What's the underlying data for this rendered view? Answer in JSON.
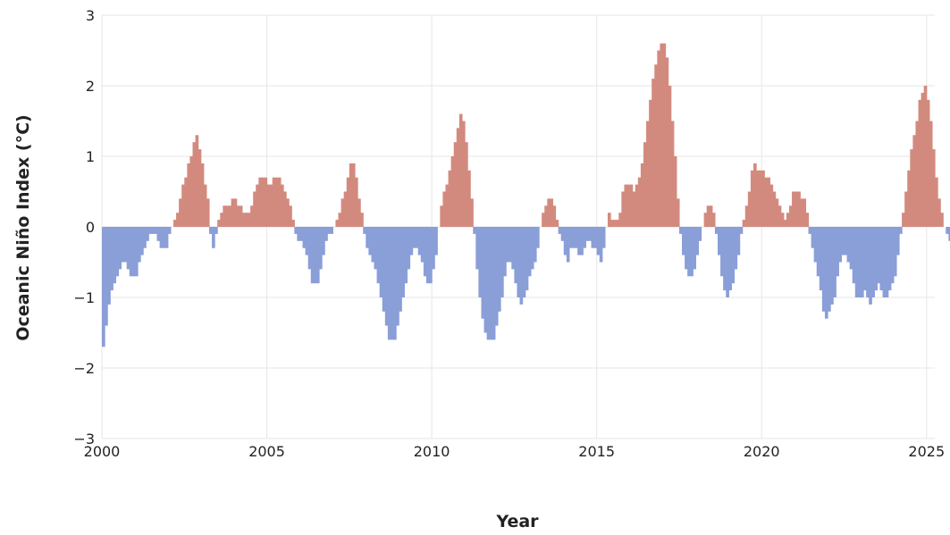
{
  "chart_data": {
    "type": "bar",
    "title": "",
    "xlabel": "Year",
    "ylabel": "Oceanic Niño Index (°C)",
    "xlim": [
      2000,
      2025.25
    ],
    "ylim": [
      -3,
      3
    ],
    "x_ticks": [
      {
        "value": 2000,
        "label": "2000"
      },
      {
        "value": 2005,
        "label": "2005"
      },
      {
        "value": 2010,
        "label": "2010"
      },
      {
        "value": 2015,
        "label": "2015"
      },
      {
        "value": 2020,
        "label": "2020"
      },
      {
        "value": 2025,
        "label": "2025"
      }
    ],
    "y_ticks": [
      {
        "value": 3,
        "label": "3"
      },
      {
        "value": 2,
        "label": "2"
      },
      {
        "value": 1,
        "label": "1"
      },
      {
        "value": 0,
        "label": "0"
      },
      {
        "value": -1,
        "label": "−1"
      },
      {
        "value": -2,
        "label": "−2"
      },
      {
        "value": -3,
        "label": "−3"
      }
    ],
    "grid": true,
    "colors": {
      "positive": "#d38a7e",
      "negative": "#8a9ed8",
      "grid": "#e6e6e6"
    },
    "series": [
      {
        "x_start": 2000,
        "step_months": 1,
        "values": [
          -1.7,
          -1.4,
          -1.1,
          -0.9,
          -0.8,
          -0.7,
          -0.6,
          -0.5,
          -0.5,
          -0.6,
          -0.7,
          -0.7,
          -0.7,
          -0.5,
          -0.4,
          -0.3,
          -0.2,
          -0.1,
          -0.1,
          -0.1,
          -0.2,
          -0.3,
          -0.3,
          -0.3,
          -0.1,
          0.0,
          0.1,
          0.2,
          0.4,
          0.6,
          0.7,
          0.9,
          1.0,
          1.2,
          1.3,
          1.1,
          0.9,
          0.6,
          0.4,
          -0.1,
          -0.3,
          -0.1,
          0.1,
          0.2,
          0.3,
          0.3,
          0.3,
          0.4,
          0.4,
          0.3,
          0.3,
          0.2,
          0.2,
          0.2,
          0.3,
          0.5,
          0.6,
          0.7,
          0.7,
          0.7,
          0.6,
          0.6,
          0.7,
          0.7,
          0.7,
          0.6,
          0.5,
          0.4,
          0.3,
          0.1,
          -0.1,
          -0.2,
          -0.2,
          -0.3,
          -0.4,
          -0.6,
          -0.8,
          -0.8,
          -0.8,
          -0.6,
          -0.4,
          -0.2,
          -0.1,
          -0.1,
          0.0,
          0.1,
          0.2,
          0.4,
          0.5,
          0.7,
          0.9,
          0.9,
          0.7,
          0.4,
          0.2,
          -0.1,
          -0.3,
          -0.4,
          -0.5,
          -0.6,
          -0.8,
          -1.0,
          -1.2,
          -1.4,
          -1.6,
          -1.6,
          -1.6,
          -1.4,
          -1.2,
          -1.0,
          -0.8,
          -0.6,
          -0.4,
          -0.3,
          -0.3,
          -0.4,
          -0.5,
          -0.7,
          -0.8,
          -0.8,
          -0.6,
          -0.4,
          0.0,
          0.3,
          0.5,
          0.6,
          0.8,
          1.0,
          1.2,
          1.4,
          1.6,
          1.5,
          1.2,
          0.8,
          0.4,
          -0.1,
          -0.6,
          -1.0,
          -1.3,
          -1.5,
          -1.6,
          -1.6,
          -1.6,
          -1.4,
          -1.2,
          -1.0,
          -0.7,
          -0.5,
          -0.5,
          -0.6,
          -0.8,
          -1.0,
          -1.1,
          -1.0,
          -0.9,
          -0.7,
          -0.6,
          -0.5,
          -0.3,
          0.0,
          0.2,
          0.3,
          0.4,
          0.4,
          0.3,
          0.1,
          -0.1,
          -0.2,
          -0.4,
          -0.5,
          -0.3,
          -0.3,
          -0.3,
          -0.4,
          -0.4,
          -0.3,
          -0.2,
          -0.2,
          -0.3,
          -0.3,
          -0.4,
          -0.5,
          -0.3,
          0.0,
          0.2,
          0.1,
          0.1,
          0.1,
          0.2,
          0.5,
          0.6,
          0.6,
          0.6,
          0.5,
          0.6,
          0.7,
          0.9,
          1.2,
          1.5,
          1.8,
          2.1,
          2.3,
          2.5,
          2.6,
          2.6,
          2.4,
          2.0,
          1.5,
          1.0,
          0.4,
          -0.1,
          -0.4,
          -0.6,
          -0.7,
          -0.7,
          -0.6,
          -0.4,
          -0.2,
          0.0,
          0.2,
          0.3,
          0.3,
          0.2,
          -0.1,
          -0.4,
          -0.7,
          -0.9,
          -1.0,
          -0.9,
          -0.8,
          -0.6,
          -0.4,
          -0.1,
          0.1,
          0.3,
          0.5,
          0.8,
          0.9,
          0.8,
          0.8,
          0.8,
          0.7,
          0.7,
          0.6,
          0.5,
          0.4,
          0.3,
          0.2,
          0.1,
          0.2,
          0.3,
          0.5,
          0.5,
          0.5,
          0.4,
          0.4,
          0.2,
          -0.1,
          -0.3,
          -0.5,
          -0.7,
          -0.9,
          -1.2,
          -1.3,
          -1.2,
          -1.1,
          -1.0,
          -0.7,
          -0.5,
          -0.4,
          -0.4,
          -0.5,
          -0.6,
          -0.8,
          -1.0,
          -1.0,
          -1.0,
          -0.9,
          -1.0,
          -1.1,
          -1.0,
          -0.9,
          -0.8,
          -0.9,
          -1.0,
          -1.0,
          -0.9,
          -0.8,
          -0.7,
          -0.4,
          -0.1,
          0.2,
          0.5,
          0.8,
          1.1,
          1.3,
          1.5,
          1.8,
          1.9,
          2.0,
          1.8,
          1.5,
          1.1,
          0.7,
          0.4,
          0.2,
          0.0,
          -0.1,
          -0.2,
          -0.3,
          -0.4,
          -0.5,
          -0.6,
          -0.4,
          -0.2
        ]
      }
    ]
  }
}
